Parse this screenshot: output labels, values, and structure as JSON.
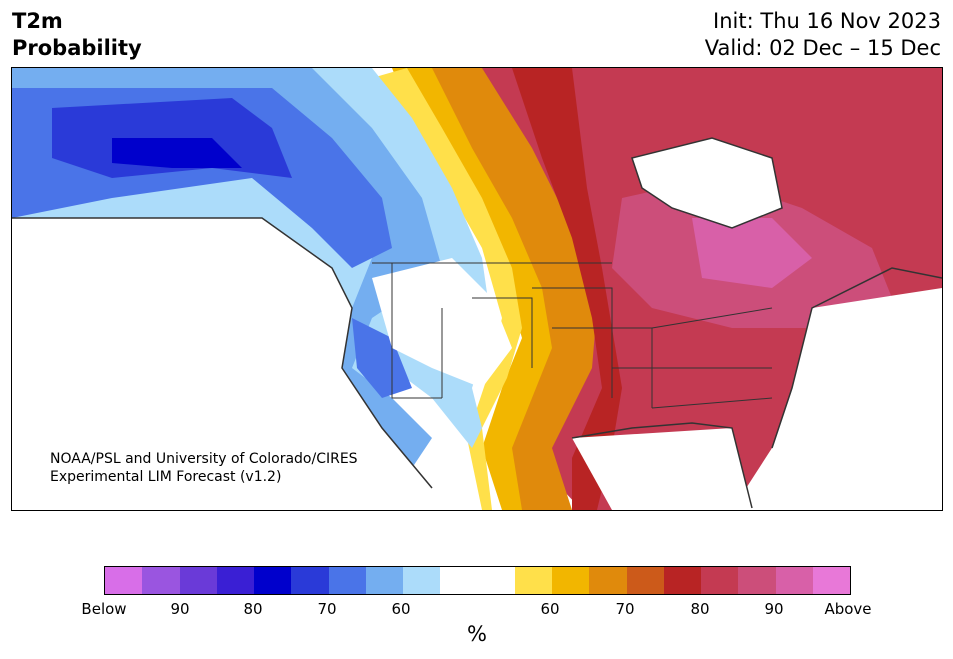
{
  "header": {
    "title_line1": "T2m",
    "title_line2": "Probability",
    "init": "Init: Thu 16 Nov 2023",
    "valid": "Valid: 02 Dec – 15 Dec"
  },
  "map": {
    "credit_line1": "NOAA/PSL and University of Colorado/CIRES",
    "credit_line2": "Experimental LIM Forecast (v1.2)"
  },
  "colorbar": {
    "colors": [
      "#d86ee8",
      "#9a55e0",
      "#6a3ad8",
      "#3a1fd4",
      "#0000cc",
      "#2a3ad8",
      "#4a74e8",
      "#74aef0",
      "#acdcfa",
      "#ffffff",
      "#ffffff",
      "#ffe04a",
      "#f2b600",
      "#e08a0c",
      "#cc5a1a",
      "#b82424",
      "#c43a52",
      "#cc4e7a",
      "#d860a8",
      "#e878d8"
    ],
    "ticks": [
      "Below",
      "90",
      "80",
      "70",
      "60",
      "60",
      "70",
      "80",
      "90",
      "Above"
    ],
    "unit": "%"
  }
}
